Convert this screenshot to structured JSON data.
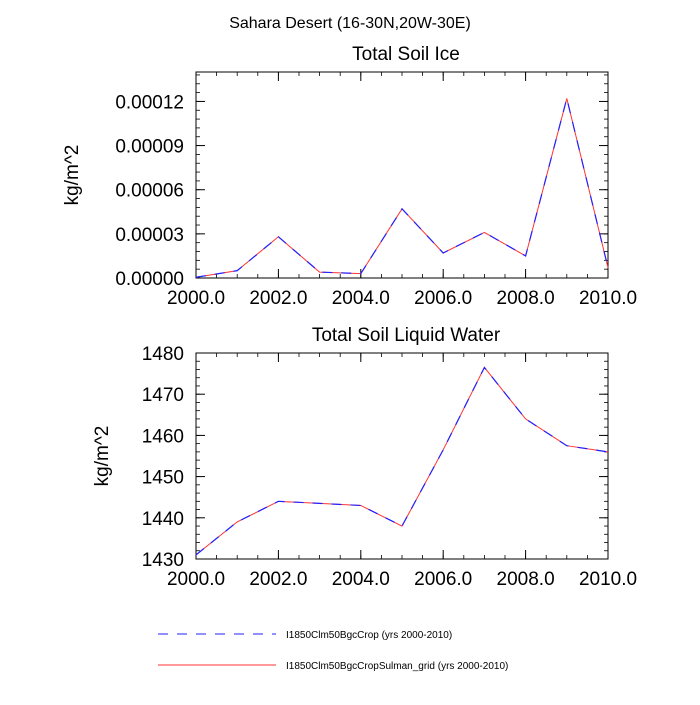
{
  "figure_title": "Sahara Desert (16-30N,20W-30E)",
  "colors": {
    "series_a": "#2222ff",
    "series_b": "#ff3333",
    "axis": "#000000"
  },
  "legend": [
    {
      "label": "I1850Clm50BgcCrop (yrs 2000-2010)",
      "style": "dashed",
      "color": "#2222ff"
    },
    {
      "label": "I1850Clm50BgcCropSulman_grid (yrs 2000-2010)",
      "style": "solid",
      "color": "#ff3333"
    }
  ],
  "chart_data": [
    {
      "type": "line",
      "title": "Total Soil Ice",
      "ylabel": "kg/m^2",
      "xlabel": "",
      "xlim": [
        2000,
        2010
      ],
      "ylim": [
        0,
        0.00014
      ],
      "x_ticks": [
        2000,
        2002,
        2004,
        2006,
        2008,
        2010
      ],
      "x_tick_labels": [
        "2000.0",
        "2002.0",
        "2004.0",
        "2006.0",
        "2008.0",
        "2010.0"
      ],
      "y_ticks": [
        0,
        3e-05,
        6e-05,
        9e-05,
        0.00012
      ],
      "y_tick_labels": [
        "0.00000",
        "0.00003",
        "0.00006",
        "0.00009",
        "0.00012"
      ],
      "x": [
        2000,
        2001,
        2002,
        2003,
        2004,
        2005,
        2006,
        2007,
        2008,
        2009,
        2010
      ],
      "series": [
        {
          "values": [
            5e-07,
            5e-06,
            2.8e-05,
            4e-06,
            3e-06,
            4.7e-05,
            1.7e-05,
            3.1e-05,
            1.5e-05,
            0.000122,
            7e-06
          ]
        },
        {
          "values": [
            5e-07,
            5e-06,
            2.8e-05,
            4e-06,
            3e-06,
            4.7e-05,
            1.7e-05,
            3.1e-05,
            1.5e-05,
            0.000122,
            7e-06
          ]
        }
      ]
    },
    {
      "type": "line",
      "title": "Total Soil Liquid Water",
      "ylabel": "kg/m^2",
      "xlabel": "",
      "xlim": [
        2000,
        2010
      ],
      "ylim": [
        1430,
        1480
      ],
      "x_ticks": [
        2000,
        2002,
        2004,
        2006,
        2008,
        2010
      ],
      "x_tick_labels": [
        "2000.0",
        "2002.0",
        "2004.0",
        "2006.0",
        "2008.0",
        "2010.0"
      ],
      "y_ticks": [
        1430,
        1440,
        1450,
        1460,
        1470,
        1480
      ],
      "y_tick_labels": [
        "1430",
        "1440",
        "1450",
        "1460",
        "1470",
        "1480"
      ],
      "x": [
        2000,
        2001,
        2002,
        2003,
        2004,
        2005,
        2006,
        2007,
        2008,
        2009,
        2010
      ],
      "series": [
        {
          "values": [
            1431.0,
            1439.0,
            1444.0,
            1443.5,
            1443.0,
            1438.0,
            1456.5,
            1476.5,
            1464.0,
            1457.5,
            1456.0
          ]
        },
        {
          "values": [
            1431.0,
            1439.0,
            1444.0,
            1443.5,
            1443.0,
            1438.0,
            1456.5,
            1476.5,
            1464.0,
            1457.5,
            1456.0
          ]
        }
      ]
    }
  ]
}
